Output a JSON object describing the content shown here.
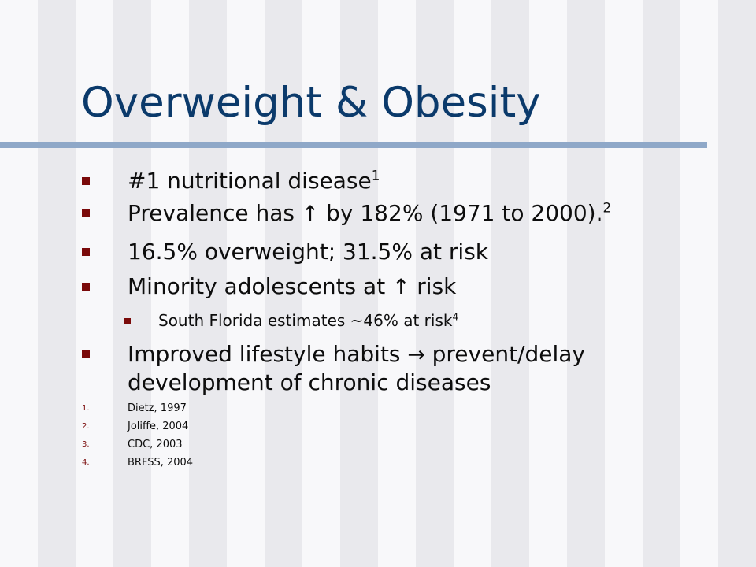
{
  "slide": {
    "title": "Overweight & Obesity",
    "colors": {
      "title": "#0b3a6b",
      "title_rule": "#8fa8c8",
      "bullet_marker": "#7a0a0a",
      "body_text": "#0d0d0d"
    }
  },
  "bullets": [
    {
      "text": "#1 nutritional disease",
      "sup": "1"
    },
    {
      "text_before": "Prevalence has",
      "arrow": "↑",
      "text_after": "by 182% (1971 to 2000).",
      "sup": "2"
    },
    {
      "text": "16.5% overweight; 31.5% at risk"
    },
    {
      "text_before": "Minority adolescents at",
      "arrow": "↑",
      "text_after": "risk"
    },
    {
      "text": "South Florida estimates ~46% at risk",
      "sup": "4"
    },
    {
      "text_before": "Improved lifestyle habits",
      "arrow": "→",
      "text_after": "prevent/delay",
      "line2": "development of chronic diseases"
    }
  ],
  "references": [
    {
      "num": "1.",
      "text": "Dietz, 1997"
    },
    {
      "num": "2.",
      "text": "Joliffe, 2004"
    },
    {
      "num": "3.",
      "text": "CDC, 2003"
    },
    {
      "num": "4.",
      "text": "BRFSS, 2004"
    }
  ]
}
